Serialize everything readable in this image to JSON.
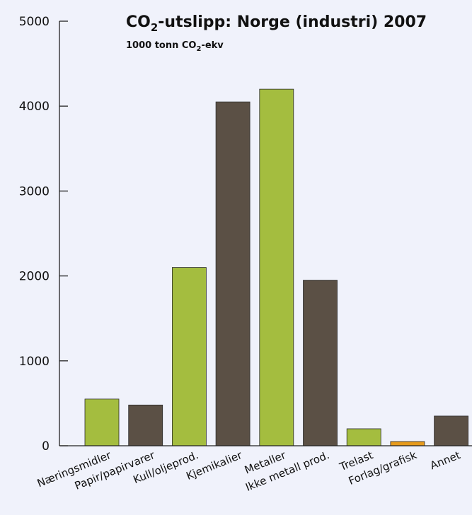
{
  "chart_data": {
    "type": "bar",
    "title": {
      "main_before": "CO",
      "main_sub": "2",
      "main_after": "-utslipp: Norge (industri) 2007"
    },
    "subtitle": {
      "before": "1000 tonn CO",
      "sub": "2",
      "after": "-ekv"
    },
    "xlabel": "",
    "ylabel": "",
    "ylim": [
      0,
      5000
    ],
    "yticks": [
      0,
      1000,
      2000,
      3000,
      4000,
      5000
    ],
    "grid": false,
    "categories": [
      "Næringsmidler",
      "Papir/papirvarer",
      "Kull/oljeprod.",
      "Kjemikalier",
      "Metaller",
      "Ikke metall prod.",
      "Trelast",
      "Forlag/grafisk",
      "Annet"
    ],
    "values": [
      550,
      480,
      2100,
      4050,
      4200,
      1950,
      200,
      50,
      350
    ],
    "bar_colors": [
      "#a4bd3f",
      "#5b5045",
      "#a4bd3f",
      "#5b5045",
      "#a4bd3f",
      "#5b5045",
      "#a4bd3f",
      "#e69a1b",
      "#5b5045"
    ]
  }
}
